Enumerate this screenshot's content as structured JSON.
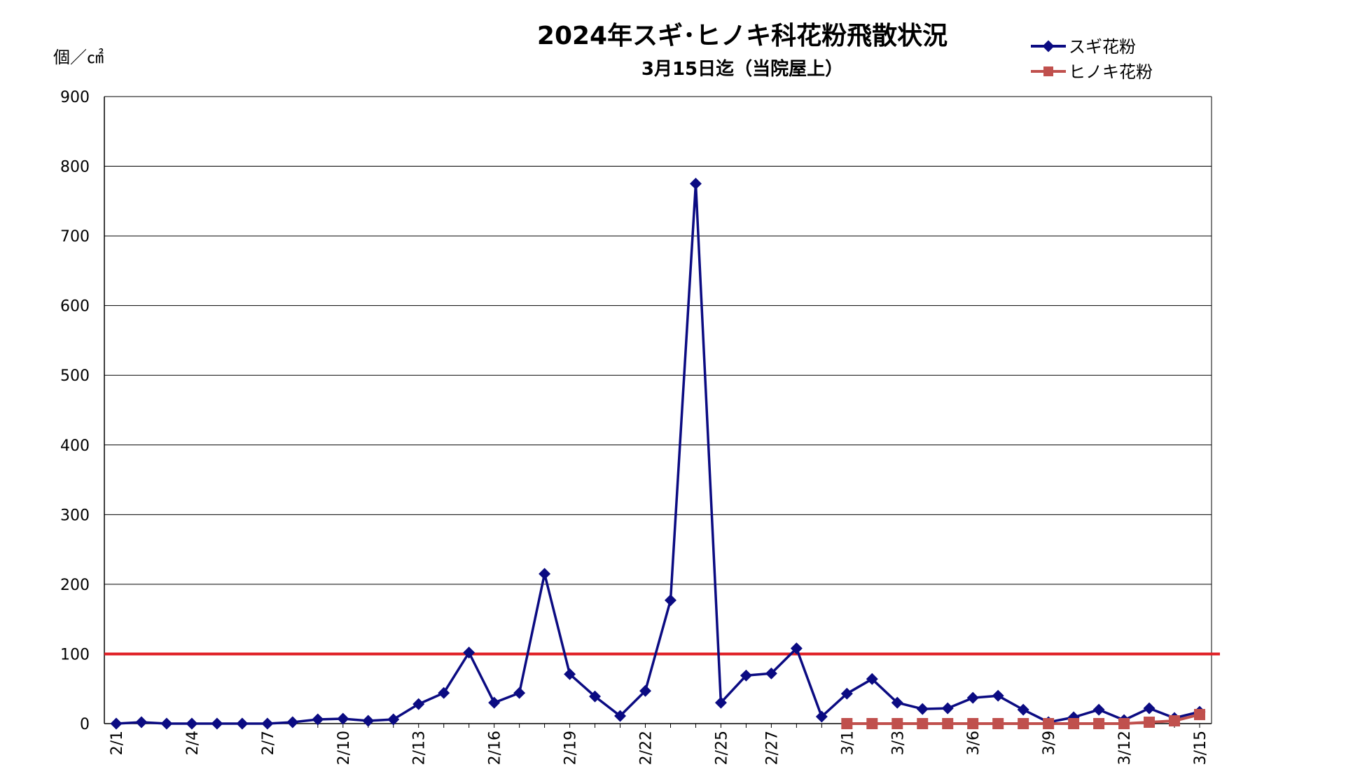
{
  "chart_data": {
    "type": "line",
    "title": "2024年スギ･ヒノキ科花粉飛散状況",
    "subtitle": "3月15日迄（当院屋上）",
    "ylabel": "個／㎠",
    "ylim": [
      0,
      900
    ],
    "yticks": [
      0,
      100,
      200,
      300,
      400,
      500,
      600,
      700,
      800,
      900
    ],
    "grid": true,
    "legend_position": "top-right",
    "reference_line": {
      "value": 100,
      "color": "#e01e24"
    },
    "dates": [
      "2/1",
      "2/2",
      "2/3",
      "2/4",
      "2/5",
      "2/6",
      "2/7",
      "2/8",
      "2/9",
      "2/10",
      "2/11",
      "2/12",
      "2/13",
      "2/14",
      "2/15",
      "2/16",
      "2/17",
      "2/18",
      "2/19",
      "2/20",
      "2/21",
      "2/22",
      "2/23",
      "2/24",
      "2/25",
      "2/26",
      "2/27",
      "2/28",
      "2/29",
      "3/1",
      "3/2",
      "3/3",
      "3/4",
      "3/5",
      "3/6",
      "3/7",
      "3/8",
      "3/9",
      "3/10",
      "3/11",
      "3/12",
      "3/13",
      "3/14",
      "3/15"
    ],
    "xtick_labels": [
      "2/1",
      "",
      "",
      "2/4",
      "",
      "",
      "2/7",
      "",
      "",
      "2/10",
      "",
      "",
      "2/13",
      "",
      "",
      "2/16",
      "",
      "",
      "2/19",
      "",
      "",
      "2/22",
      "",
      "",
      "2/25",
      "",
      "2/27",
      "",
      "",
      "3/1",
      "",
      "3/3",
      "",
      "",
      "3/6",
      "",
      "",
      "3/9",
      "",
      "",
      "3/12",
      "",
      "",
      "3/15"
    ],
    "series": [
      {
        "name": "スギ花粉",
        "color": "#0b0b82",
        "marker": "diamond",
        "values": [
          0,
          2,
          0,
          0,
          0,
          0,
          0,
          2,
          6,
          7,
          4,
          6,
          28,
          44,
          102,
          30,
          44,
          215,
          71,
          39,
          11,
          47,
          177,
          775,
          30,
          69,
          72,
          108,
          10,
          43,
          64,
          30,
          21,
          22,
          37,
          40,
          20,
          2,
          9,
          20,
          5,
          22,
          8,
          17
        ]
      },
      {
        "name": "ヒノキ花粉",
        "color": "#c0504d",
        "marker": "square",
        "values": [
          null,
          null,
          null,
          null,
          null,
          null,
          null,
          null,
          null,
          null,
          null,
          null,
          null,
          null,
          null,
          null,
          null,
          null,
          null,
          null,
          null,
          null,
          null,
          null,
          null,
          null,
          null,
          null,
          null,
          0,
          0,
          0,
          0,
          0,
          0,
          0,
          0,
          0,
          0,
          0,
          0,
          2,
          4,
          13
        ]
      }
    ]
  }
}
